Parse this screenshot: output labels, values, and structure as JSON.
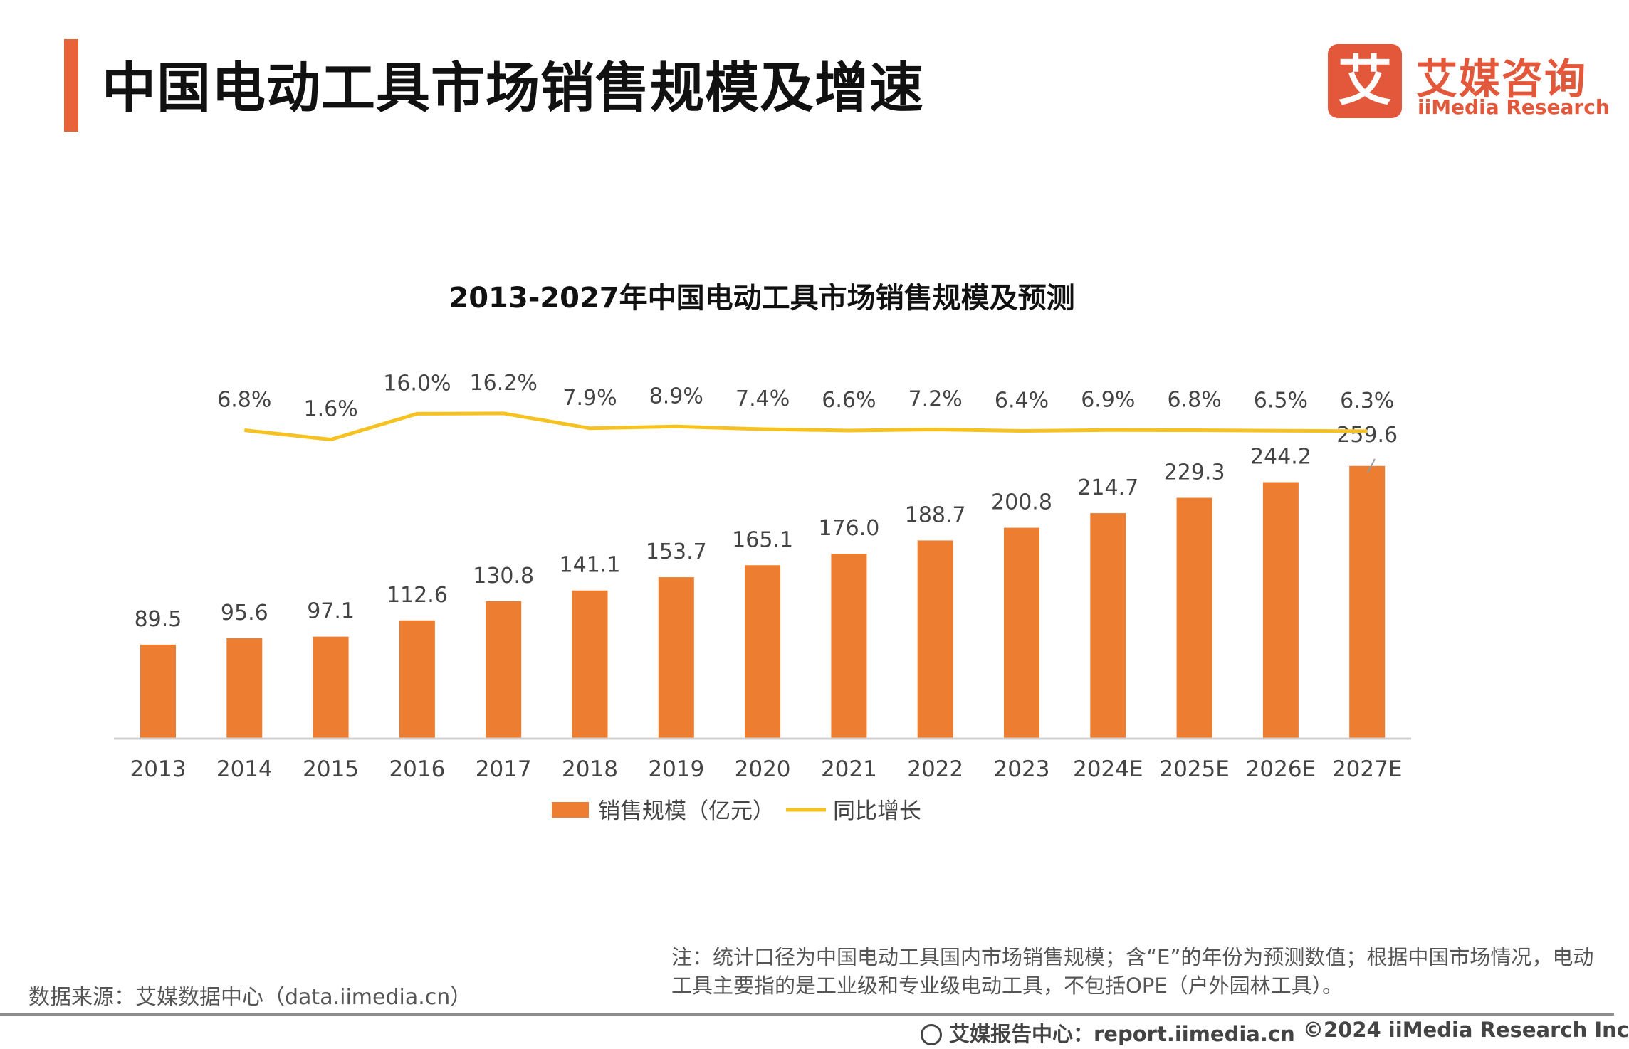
{
  "header": {
    "title": "中国电动工具市场销售规模及增速",
    "logo_mark": "艾",
    "logo_cn": "艾媒咨询",
    "logo_en": "iiMedia Research"
  },
  "colors": {
    "bar": "#ed7d31",
    "line": "#f5c222",
    "accent": "#e8623a"
  },
  "chart_data": {
    "type": "bar",
    "title": "2013-2027年中国电动工具市场销售规模及预测",
    "categories": [
      "2013",
      "2014",
      "2015",
      "2016",
      "2017",
      "2018",
      "2019",
      "2020",
      "2021",
      "2022",
      "2023",
      "2024E",
      "2025E",
      "2026E",
      "2027E"
    ],
    "series": [
      {
        "name": "销售规模（亿元）",
        "type": "bar",
        "values": [
          89.5,
          95.6,
          97.1,
          112.6,
          130.8,
          141.1,
          153.7,
          165.1,
          176.0,
          188.7,
          200.8,
          214.7,
          229.3,
          244.2,
          259.6
        ],
        "labels": [
          "89.5",
          "95.6",
          "97.1",
          "112.6",
          "130.8",
          "141.1",
          "153.7",
          "165.1",
          "176.0",
          "188.7",
          "200.8",
          "214.7",
          "229.3",
          "244.2",
          "259.6"
        ]
      },
      {
        "name": "同比增长",
        "type": "line",
        "values": [
          null,
          6.8,
          1.6,
          16.0,
          16.2,
          7.9,
          8.9,
          7.4,
          6.6,
          7.2,
          6.4,
          6.9,
          6.8,
          6.5,
          6.3
        ],
        "labels": [
          "",
          "6.8%",
          "1.6%",
          "16.0%",
          "16.2%",
          "7.9%",
          "8.9%",
          "7.4%",
          "6.6%",
          "7.2%",
          "6.4%",
          "6.9%",
          "6.8%",
          "6.5%",
          "6.3%"
        ]
      }
    ],
    "legend": [
      "销售规模（亿元）",
      "同比增长"
    ],
    "legend_position": "bottom"
  },
  "note": "注：统计口径为中国电动工具国内市场销售规模；含“E”的年份为预测数值；根据中国市场情况，电动工具主要指的是工业级和专业级电动工具，不包括OPE（户外园林工具）。",
  "source": "数据来源：艾媒数据中心（data.iimedia.cn）",
  "footer": {
    "left": "艾媒报告中心：report.iimedia.cn",
    "right": "©2024  iiMedia Research  Inc"
  }
}
